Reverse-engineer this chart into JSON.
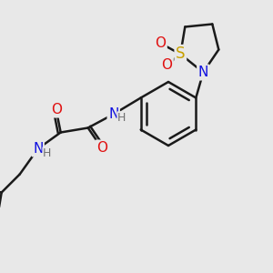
{
  "bg_color": "#e8e8e8",
  "bond_color": "#1a1a1a",
  "bond_lw": 1.8,
  "atom_colors": {
    "N": "#1010e0",
    "O": "#e01010",
    "S": "#c8a000",
    "C": "#1a1a1a",
    "H": "#707070"
  },
  "font_size_atom": 11,
  "font_size_H": 9
}
